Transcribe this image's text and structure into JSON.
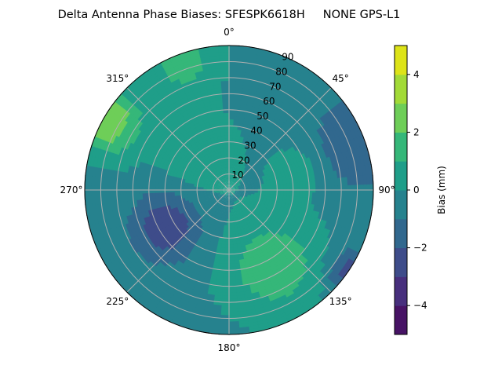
{
  "chart_data": {
    "type": "heatmap",
    "subtype": "polar-contourf",
    "title": "Delta Antenna Phase Biases: SFESPK6618H     NONE GPS-L1",
    "angular_ticks": [
      {
        "angle": 0,
        "label": "0°"
      },
      {
        "angle": 45,
        "label": "45°"
      },
      {
        "angle": 90,
        "label": "90°"
      },
      {
        "angle": 135,
        "label": "135°"
      },
      {
        "angle": 180,
        "label": "180°"
      },
      {
        "angle": 225,
        "label": "225°"
      },
      {
        "angle": 270,
        "label": "270°"
      },
      {
        "angle": 315,
        "label": "315°"
      }
    ],
    "angular_direction": "clockwise",
    "angular_zero": "north",
    "radial_ticks": [
      10,
      20,
      30,
      40,
      50,
      60,
      70,
      80,
      90
    ],
    "radial_range": [
      0,
      90
    ],
    "grid": true,
    "colorbar": {
      "label": "Bias (mm)",
      "levels": [
        -5,
        -4,
        -3,
        -2,
        -1,
        0,
        1,
        2,
        3,
        4,
        5
      ],
      "ticks": [
        -4,
        -2,
        0,
        2,
        4
      ],
      "tick_labels": [
        "−4",
        "−2",
        "0",
        "2",
        "4"
      ],
      "colors": [
        "#471365",
        "#472f7d",
        "#3e4c8a",
        "#31688e",
        "#26828e",
        "#1f9e89",
        "#35b779",
        "#6ece58",
        "#a2da37",
        "#dde318"
      ],
      "colormap": "viridis"
    },
    "field_features": [
      {
        "azimuth": 150,
        "zenith": 55,
        "bias": 2.0,
        "spread": 22
      },
      {
        "azimuth": 240,
        "zenith": 45,
        "bias": -2.6,
        "spread": 15
      },
      {
        "azimuth": 300,
        "zenith": 88,
        "bias": 3.3,
        "spread": 15
      },
      {
        "azimuth": 70,
        "zenith": 85,
        "bias": -1.6,
        "spread": 20
      },
      {
        "azimuth": 125,
        "zenith": 92,
        "bias": -2.5,
        "spread": 10
      },
      {
        "azimuth": 340,
        "zenith": 85,
        "bias": 1.8,
        "spread": 15
      },
      {
        "azimuth": 320,
        "zenith": 30,
        "bias": 1.1,
        "spread": 18
      },
      {
        "azimuth": 75,
        "zenith": 45,
        "bias": 1.0,
        "spread": 12
      }
    ],
    "field_base": -0.3
  }
}
